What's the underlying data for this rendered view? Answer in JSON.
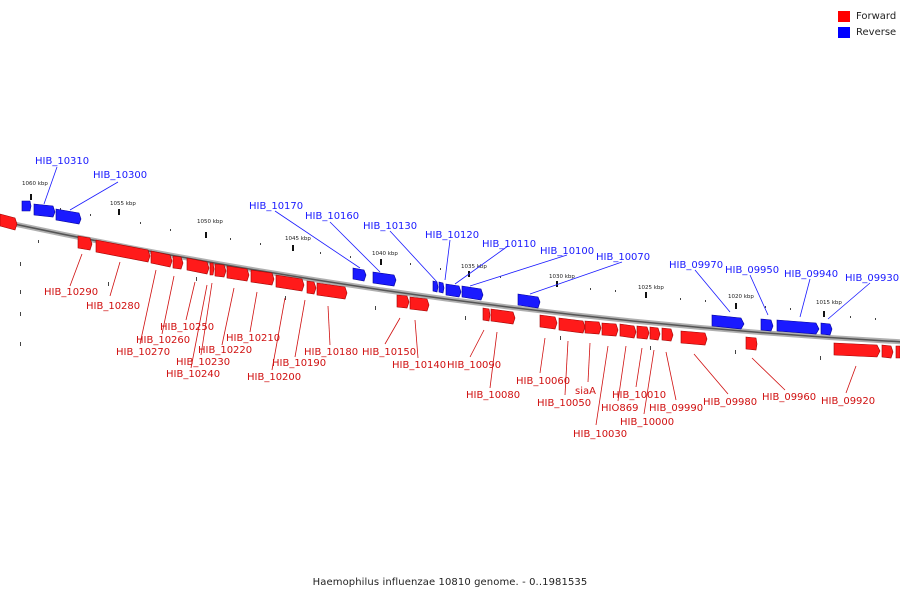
{
  "legend": {
    "forward_label": "Forward",
    "reverse_label": "Reverse",
    "forward_color": "#ff0000",
    "reverse_color": "#0000ff"
  },
  "caption": "Haemophilus influenzae 10810 genome. - 0..1981535",
  "kbp_ticks": [
    "1060 kbp",
    "1055 kbp",
    "1050 kbp",
    "1045 kbp",
    "1040 kbp",
    "1035 kbp",
    "1030 kbp",
    "1025 kbp",
    "1020 kbp",
    "1015 kbp"
  ],
  "reverse_genes": [
    "HIB_10310",
    "HIB_10300",
    "HIB_10170",
    "HIB_10160",
    "HIB_10130",
    "HIB_10120",
    "HIB_10110",
    "HIB_10100",
    "HIB_10070",
    "HIB_09970",
    "HIB_09950",
    "HIB_09940",
    "HIB_09930"
  ],
  "forward_genes": [
    "HIB_10290",
    "HIB_10280",
    "HIB_10250",
    "HIB_10260",
    "HIB_10270",
    "HIB_10220",
    "HIB_10230",
    "HIB_10240",
    "HIB_10210",
    "HIB_10190",
    "HIB_10200",
    "HIB_10180",
    "HIB_10150",
    "HIB_10140",
    "HIB_10090",
    "HIB_10080",
    "HIB_10060",
    "siaA",
    "HIB_10050",
    "HIO869",
    "HIB_10030",
    "HIB_10010",
    "HIB_10000",
    "HIB_09990",
    "HIB_09980",
    "HIB_09960",
    "HIB_09920"
  ]
}
